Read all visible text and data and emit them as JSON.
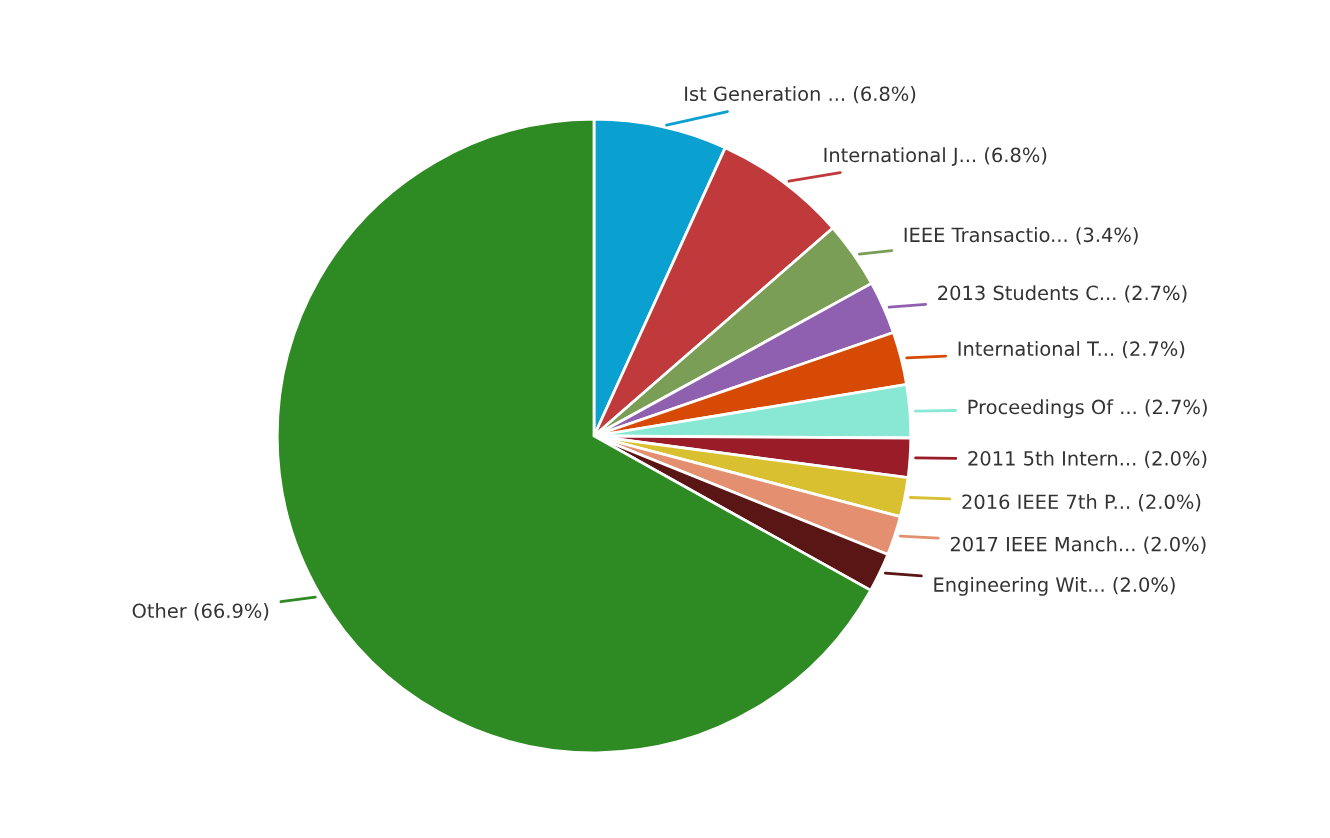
{
  "chart_data": {
    "type": "pie",
    "categories": [
      "Ist Generation ...",
      "International J...",
      "IEEE Transactio...",
      "2013 Students C...",
      "International T...",
      "Proceedings Of ...",
      "2011 5th Intern...",
      "2016 IEEE 7th P...",
      "2017 IEEE Manch...",
      "Engineering Wit...",
      "Other"
    ],
    "values": [
      6.8,
      6.8,
      3.4,
      2.7,
      2.7,
      2.7,
      2.0,
      2.0,
      2.0,
      2.0,
      66.9
    ],
    "value_labels": [
      "(6.8%)",
      "(6.8%)",
      "(3.4%)",
      "(2.7%)",
      "(2.7%)",
      "(2.7%)",
      "(2.0%)",
      "(2.0%)",
      "(2.0%)",
      "(2.0%)",
      "(66.9%)"
    ],
    "colors": [
      "#0aa0d0",
      "#c0393b",
      "#7a9e55",
      "#9060b0",
      "#d64a05",
      "#88e8d4",
      "#9a1c28",
      "#d8c030",
      "#e49070",
      "#5a1515",
      "#2e8a22"
    ],
    "legend": false
  }
}
